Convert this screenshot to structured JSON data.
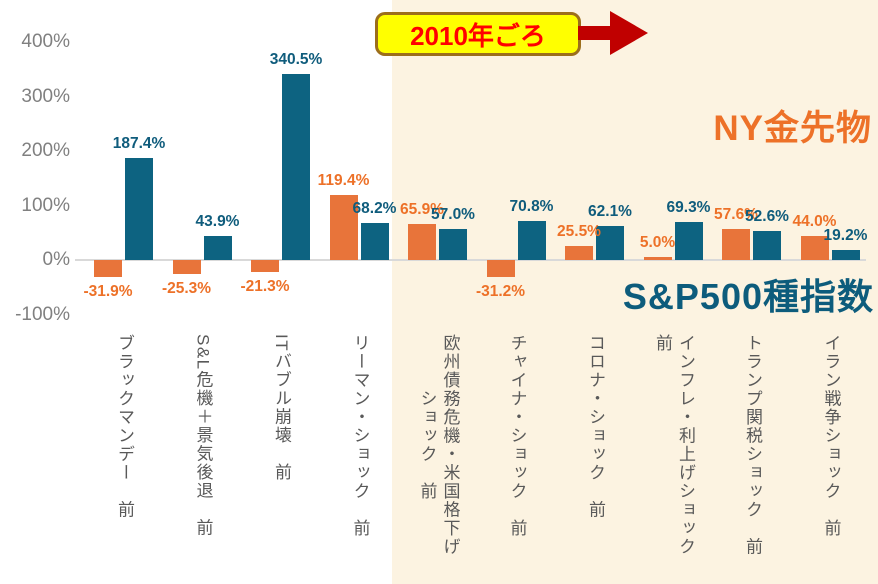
{
  "chart_data": {
    "type": "bar",
    "title": "",
    "categories": [
      "ブラックマンデー　前",
      "S&L危機＋景気後退　前",
      "ITバブル崩壊　前",
      "リーマン・ショック　前",
      "欧州債務危機・米国格下げ\n　　　ショック　前",
      "チャイナ・ショック　前",
      "コロナ・ショック　前",
      "インフレ・利上げショック　前",
      "トランプ関税ショック　前",
      "イラン戦争ショック　前"
    ],
    "series": [
      {
        "name": "NY金先物",
        "color": "#E8743A",
        "label_color": "#ED7128",
        "values": [
          -31.9,
          -25.3,
          -21.3,
          119.4,
          65.9,
          -31.2,
          25.5,
          5.0,
          57.6,
          44.0
        ]
      },
      {
        "name": "S&P500種指数",
        "color": "#0D6381",
        "label_color": "#0F5C7C",
        "values": [
          187.4,
          43.9,
          340.5,
          68.2,
          57.0,
          70.8,
          62.1,
          69.3,
          52.6,
          19.2
        ]
      }
    ],
    "value_suffix": "%",
    "ylim": [
      -100,
      400
    ],
    "yticks": [
      400,
      300,
      200,
      100,
      0,
      -100
    ],
    "grid": "zero-line-only",
    "legend_position": "inline-text-labels",
    "annotations": {
      "callout": "2010年ごろ"
    }
  },
  "colors": {
    "background": "#FFFFFF",
    "highlight_panel": "#FCF3E1",
    "axis_label": "#808080",
    "category_label": "#595959",
    "zero_line": "#D9D9D9",
    "callout_bg": "#FFFF00",
    "callout_border": "#9C6E1B",
    "callout_text": "#FF0000",
    "arrow": "#C00000"
  }
}
